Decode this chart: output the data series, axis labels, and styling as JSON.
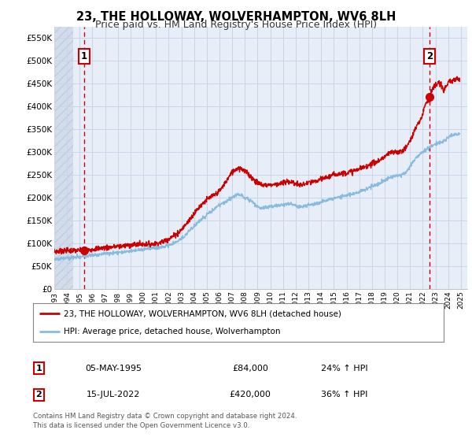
{
  "title": "23, THE HOLLOWAY, WOLVERHAMPTON, WV6 8LH",
  "subtitle": "Price paid vs. HM Land Registry's House Price Index (HPI)",
  "xlim": [
    1993.0,
    2025.5
  ],
  "ylim": [
    0,
    575000
  ],
  "yticks": [
    0,
    50000,
    100000,
    150000,
    200000,
    250000,
    300000,
    350000,
    400000,
    450000,
    500000,
    550000
  ],
  "ytick_labels": [
    "£0",
    "£50K",
    "£100K",
    "£150K",
    "£200K",
    "£250K",
    "£300K",
    "£350K",
    "£400K",
    "£450K",
    "£500K",
    "£550K"
  ],
  "xticks": [
    1993,
    1994,
    1995,
    1996,
    1997,
    1998,
    1999,
    2000,
    2001,
    2002,
    2003,
    2004,
    2005,
    2006,
    2007,
    2008,
    2009,
    2010,
    2011,
    2012,
    2013,
    2014,
    2015,
    2016,
    2017,
    2018,
    2019,
    2020,
    2021,
    2022,
    2023,
    2024,
    2025
  ],
  "grid_color": "#c8d4e8",
  "bg_color": "#e8eef8",
  "hatch_color": "#c0cce0",
  "sale1_x": 1995.35,
  "sale1_y": 84000,
  "sale2_x": 2022.54,
  "sale2_y": 420000,
  "sale1_label": "1",
  "sale2_label": "2",
  "red_color": "#cc0000",
  "blue_color": "#88bbdd",
  "vline_color": "#cc0000",
  "legend_label_red": "23, THE HOLLOWAY, WOLVERHAMPTON, WV6 8LH (detached house)",
  "legend_label_blue": "HPI: Average price, detached house, Wolverhampton",
  "table_row1": [
    "1",
    "05-MAY-1995",
    "£84,000",
    "24% ↑ HPI"
  ],
  "table_row2": [
    "2",
    "15-JUL-2022",
    "£420,000",
    "36% ↑ HPI"
  ],
  "footnote1": "Contains HM Land Registry data © Crown copyright and database right 2024.",
  "footnote2": "This data is licensed under the Open Government Licence v3.0.",
  "title_fontsize": 10.5,
  "subtitle_fontsize": 9
}
